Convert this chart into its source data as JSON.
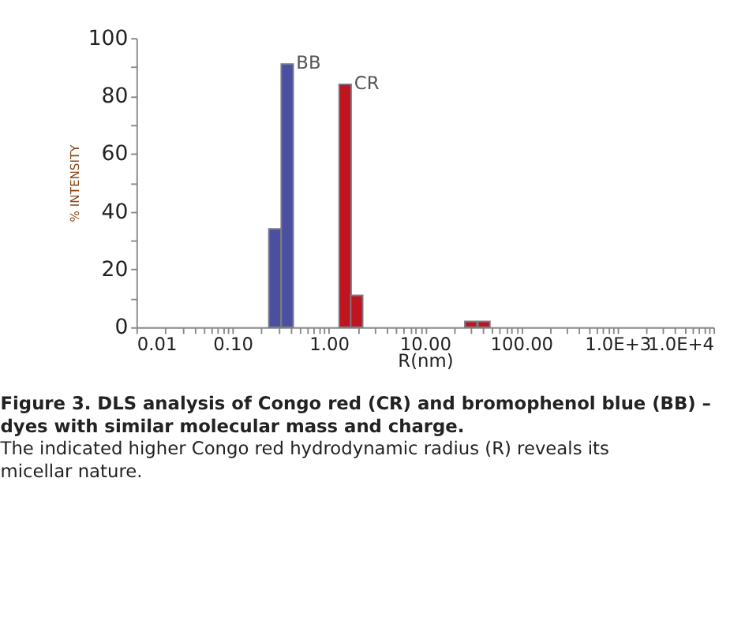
{
  "chart_data": {
    "type": "bar",
    "title": "Figure 3. DLS analysis of Congo red (CR) and bromophenol blue (BB) – dyes with similar molecular mass and charge.",
    "subtitle": "The indicated higher Congo red hydrodynamic radius (R) reveals its micellar nature.",
    "xlabel": "R(nm)",
    "ylabel": "% INTENSITY",
    "log": "x",
    "series": [
      {
        "name": "BB",
        "color": "#4a4fa0",
        "x": [
          0.275,
          0.37
        ],
        "values": [
          34,
          91
        ]
      },
      {
        "name": "CR",
        "color": "#c0141e",
        "x": [
          1.48,
          1.95,
          30,
          41
        ],
        "values": [
          84,
          11,
          2,
          2
        ]
      }
    ],
    "xlim": [
      0.01,
      10000
    ],
    "ylim": [
      0,
      100
    ],
    "xticks": [
      {
        "value": 0.01,
        "label": "0.01"
      },
      {
        "value": 0.1,
        "label": "0.10"
      },
      {
        "value": 1,
        "label": "1.00"
      },
      {
        "value": 10,
        "label": "10.00"
      },
      {
        "value": 100,
        "label": "100.00"
      },
      {
        "value": 1000,
        "label": "1.0E+3"
      },
      {
        "value": 10000,
        "label": "1.0E+4"
      },
      {
        "value": 0.02,
        "label": null
      },
      {
        "value": 0.03,
        "label": null
      },
      {
        "value": 0.04,
        "label": null
      },
      {
        "value": 0.05,
        "label": null
      },
      {
        "value": 0.06,
        "label": null
      },
      {
        "value": 0.07,
        "label": null
      },
      {
        "value": 0.08,
        "label": null
      },
      {
        "value": 0.09,
        "label": null
      },
      {
        "value": 0.2,
        "label": null
      },
      {
        "value": 0.3,
        "label": null
      },
      {
        "value": 0.4,
        "label": null
      },
      {
        "value": 0.5,
        "label": null
      },
      {
        "value": 0.6,
        "label": null
      },
      {
        "value": 0.7,
        "label": null
      },
      {
        "value": 0.8,
        "label": null
      },
      {
        "value": 0.9,
        "label": null
      },
      {
        "value": 2,
        "label": null
      },
      {
        "value": 3,
        "label": null
      },
      {
        "value": 4,
        "label": null
      },
      {
        "value": 5,
        "label": null
      },
      {
        "value": 6,
        "label": null
      },
      {
        "value": 7,
        "label": null
      },
      {
        "value": 8,
        "label": null
      },
      {
        "value": 9,
        "label": null
      },
      {
        "value": 20,
        "label": null
      },
      {
        "value": 30,
        "label": null
      },
      {
        "value": 40,
        "label": null
      },
      {
        "value": 50,
        "label": null
      },
      {
        "value": 60,
        "label": null
      },
      {
        "value": 70,
        "label": null
      },
      {
        "value": 80,
        "label": null
      },
      {
        "value": 90,
        "label": null
      },
      {
        "value": 200,
        "label": null
      },
      {
        "value": 300,
        "label": null
      },
      {
        "value": 400,
        "label": null
      },
      {
        "value": 500,
        "label": null
      },
      {
        "value": 600,
        "label": null
      },
      {
        "value": 700,
        "label": null
      },
      {
        "value": 800,
        "label": null
      },
      {
        "value": 900,
        "label": null
      },
      {
        "value": 2000,
        "label": null
      },
      {
        "value": 3000,
        "label": null
      },
      {
        "value": 4000,
        "label": null
      },
      {
        "value": 5000,
        "label": null
      },
      {
        "value": 6000,
        "label": null
      },
      {
        "value": 7000,
        "label": null
      },
      {
        "value": 8000,
        "label": null
      },
      {
        "value": 9000,
        "label": null
      }
    ],
    "yticks": [
      0,
      20,
      40,
      60,
      80,
      100,
      {
        "value": 10,
        "label": null
      },
      {
        "value": 30,
        "label": null
      },
      {
        "value": 50,
        "label": null
      },
      {
        "value": 70,
        "label": null
      },
      {
        "value": 90,
        "label": null
      }
    ],
    "grid": false
  }
}
